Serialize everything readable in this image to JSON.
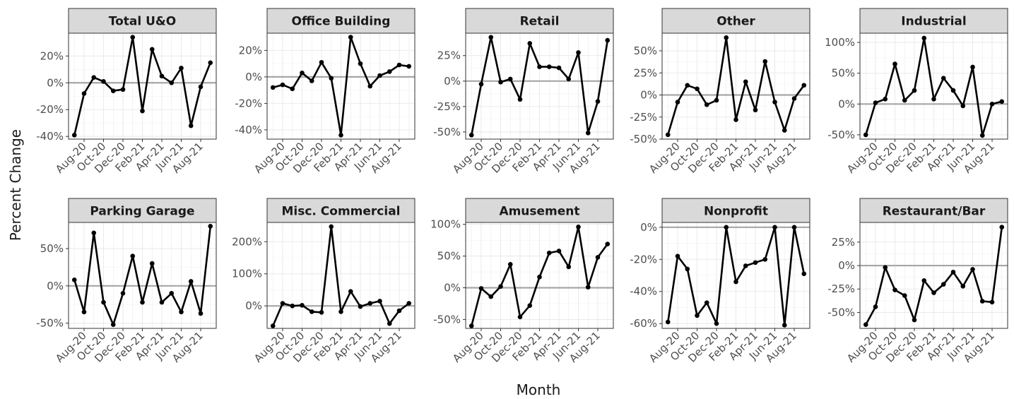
{
  "chart_data": {
    "type": "line",
    "layout": "faceted",
    "xlabel": "Month",
    "ylabel": "Percent Change",
    "x": [
      "Jul-20",
      "Aug-20",
      "Sep-20",
      "Oct-20",
      "Nov-20",
      "Dec-20",
      "Jan-21",
      "Feb-21",
      "Mar-21",
      "Apr-21",
      "May-21",
      "Jun-21",
      "Jul-21",
      "Aug-21",
      "Sep-21"
    ],
    "x_tick_labels": [
      "Aug-20",
      "Oct-20",
      "Dec-20",
      "Feb-21",
      "Apr-21",
      "Jun-21",
      "Aug-21"
    ],
    "x_tick_positions": [
      1,
      3,
      5,
      7,
      9,
      11,
      13
    ],
    "reference_line": 0,
    "grid": true,
    "line_color": "#000000",
    "reference_line_color": "#a6a6a6",
    "panels": [
      {
        "title": "Total U&O",
        "values": [
          -39,
          -8,
          4,
          1,
          -6,
          -5,
          34,
          -21,
          25,
          5,
          0,
          11,
          -32,
          -3,
          15
        ],
        "ylim": [
          -42,
          37
        ],
        "yticks": [
          -40,
          -20,
          0,
          20
        ],
        "ytick_labels": [
          "-40%",
          "-20%",
          "0%",
          "20%"
        ]
      },
      {
        "title": "Office Building",
        "values": [
          -8,
          -6,
          -9,
          3,
          -3,
          11,
          -1,
          -44,
          30,
          10,
          -7,
          1,
          4,
          9,
          8
        ],
        "ylim": [
          -47,
          33
        ],
        "yticks": [
          -40,
          -20,
          0,
          20
        ],
        "ytick_labels": [
          "-40%",
          "-20%",
          "0%",
          "20%"
        ]
      },
      {
        "title": "Retail",
        "values": [
          -53,
          -3,
          43,
          -1,
          2,
          -18,
          37,
          14,
          14,
          13,
          2,
          28,
          -51,
          -20,
          40
        ],
        "ylim": [
          -57,
          47
        ],
        "yticks": [
          -50,
          -25,
          0,
          25
        ],
        "ytick_labels": [
          "-50%",
          "-25%",
          "0%",
          "25%"
        ]
      },
      {
        "title": "Other",
        "values": [
          -45,
          -8,
          11,
          7,
          -11,
          -6,
          65,
          -28,
          15,
          -17,
          38,
          -8,
          -40,
          -4,
          11
        ],
        "ylim": [
          -50,
          70
        ],
        "yticks": [
          -50,
          -25,
          0,
          25,
          50
        ],
        "ytick_labels": [
          "-50%",
          "-25%",
          "0%",
          "25%",
          "50%"
        ]
      },
      {
        "title": "Industrial",
        "values": [
          -50,
          2,
          8,
          65,
          6,
          22,
          107,
          8,
          42,
          22,
          -3,
          60,
          -51,
          0,
          4
        ],
        "ylim": [
          -57,
          115
        ],
        "yticks": [
          -50,
          0,
          50,
          100
        ],
        "ytick_labels": [
          "-50%",
          "0%",
          "50%",
          "100%"
        ]
      },
      {
        "title": "Parking Garage",
        "values": [
          8,
          -35,
          71,
          -22,
          -52,
          -10,
          40,
          -22,
          30,
          -22,
          -10,
          -35,
          6,
          -37,
          80
        ],
        "ylim": [
          -57,
          85
        ],
        "yticks": [
          -50,
          0,
          50
        ],
        "ytick_labels": [
          "-50%",
          "0%",
          "50%"
        ]
      },
      {
        "title": "Misc. Commercial",
        "values": [
          -62,
          8,
          0,
          2,
          -18,
          -20,
          247,
          -18,
          45,
          -2,
          8,
          15,
          -55,
          -15,
          8
        ],
        "ylim": [
          -70,
          260
        ],
        "yticks": [
          0,
          100,
          200
        ],
        "ytick_labels": [
          "0%",
          "100%",
          "200%"
        ]
      },
      {
        "title": "Amusement",
        "values": [
          -60,
          -1,
          -14,
          2,
          37,
          -46,
          -28,
          17,
          55,
          58,
          33,
          96,
          1,
          48,
          69
        ],
        "ylim": [
          -64,
          103
        ],
        "yticks": [
          -50,
          0,
          50,
          100
        ],
        "ytick_labels": [
          "-50%",
          "0%",
          "50%",
          "100%"
        ]
      },
      {
        "title": "Nonprofit",
        "values": [
          -59,
          -18,
          -26,
          -55,
          -47,
          -60,
          0,
          -34,
          -24,
          -22,
          -20,
          0,
          -61,
          0,
          -29
        ],
        "ylim": [
          -63,
          3
        ],
        "yticks": [
          -60,
          -40,
          -20,
          0
        ],
        "ytick_labels": [
          "-60%",
          "-40%",
          "-20%",
          "0%"
        ]
      },
      {
        "title": "Restaurant/Bar",
        "values": [
          -63,
          -44,
          -2,
          -26,
          -32,
          -58,
          -16,
          -29,
          -20,
          -7,
          -22,
          -4,
          -38,
          -39,
          41
        ],
        "ylim": [
          -67,
          46
        ],
        "yticks": [
          -50,
          -25,
          0,
          25
        ],
        "ytick_labels": [
          "-50%",
          "-25%",
          "0%",
          "25%"
        ]
      }
    ]
  }
}
